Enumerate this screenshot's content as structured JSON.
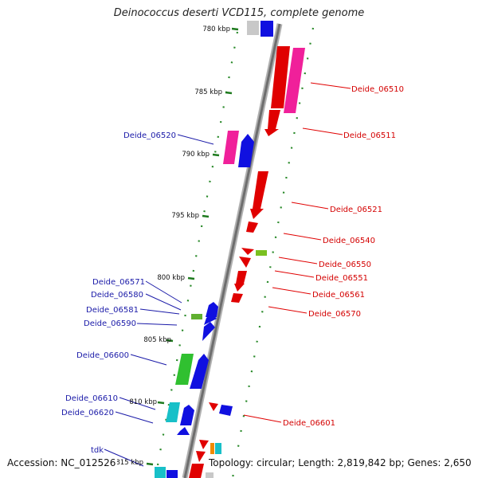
{
  "title": "Deinococcus deserti VCD115, complete genome",
  "footer": {
    "accession": "Accession: NC_012526",
    "topology": "Topology: circular; Length: 2,819,842 bp; Genes: 2,650"
  },
  "colors": {
    "right_label": "#d40000",
    "left_label": "#1a1aa8",
    "tick": "#1e7a1e",
    "axis": "#8c8c8c"
  },
  "kbp_ticks": [
    "780 kbp",
    "785 kbp",
    "790 kbp",
    "795 kbp",
    "800 kbp",
    "805 kbp",
    "810 kbp",
    "815 kbp"
  ],
  "right_genes": [
    "Deide_06510",
    "Deide_06511",
    "Deide_06521",
    "Deide_06540",
    "Deide_06550",
    "Deide_06551",
    "Deide_06561",
    "Deide_06570",
    "Deide_06601"
  ],
  "left_genes": [
    "Deide_06520",
    "Deide_06571",
    "Deide_06580",
    "Deide_06581",
    "Deide_06590",
    "Deide_06600",
    "Deide_06610",
    "Deide_06620",
    "tdk"
  ]
}
